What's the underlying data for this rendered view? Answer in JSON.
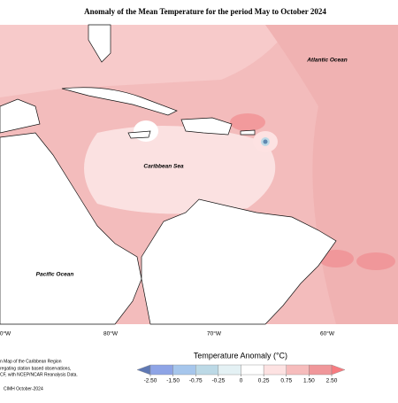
{
  "title": "Anomaly of the Mean Temperature for the period May to October 2024",
  "map_labels": [
    "Atlantic Ocean",
    "Caribbean Sea",
    "Pacific Ocean"
  ],
  "longitude_labels": [
    "0°W",
    "80°W",
    "70°W",
    "60°W"
  ],
  "notes": [
    "n Map of the Caribbean Region",
    "regating station based observations,",
    "CF, with NCEP/NCAR Reanalysis Data."
  ],
  "credit": "CIMH October-2024",
  "legend": {
    "title": "Temperature Anomaly (°C)",
    "ticks": [
      {
        "value": -2.5,
        "label": "-2.50"
      },
      {
        "value": -1.5,
        "label": "-1.50"
      },
      {
        "value": -0.75,
        "label": "-0.75"
      },
      {
        "value": -0.25,
        "label": "-0.25"
      },
      0,
      {
        "value": 0.25,
        "label": "0.25"
      },
      {
        "value": 0.75,
        "label": "0.75"
      },
      {
        "value": 1.5,
        "label": "1.50"
      },
      {
        "value": 2.5,
        "label": "2.50"
      }
    ],
    "colors": [
      "#5f78b4",
      "#8ea4e6",
      "#a6c6ec",
      "#bcd9e6",
      "#e4f1f4",
      "#ffffff",
      "#fde2e2",
      "#f6bcbc",
      "#f0979a",
      "#f77b80"
    ]
  }
}
